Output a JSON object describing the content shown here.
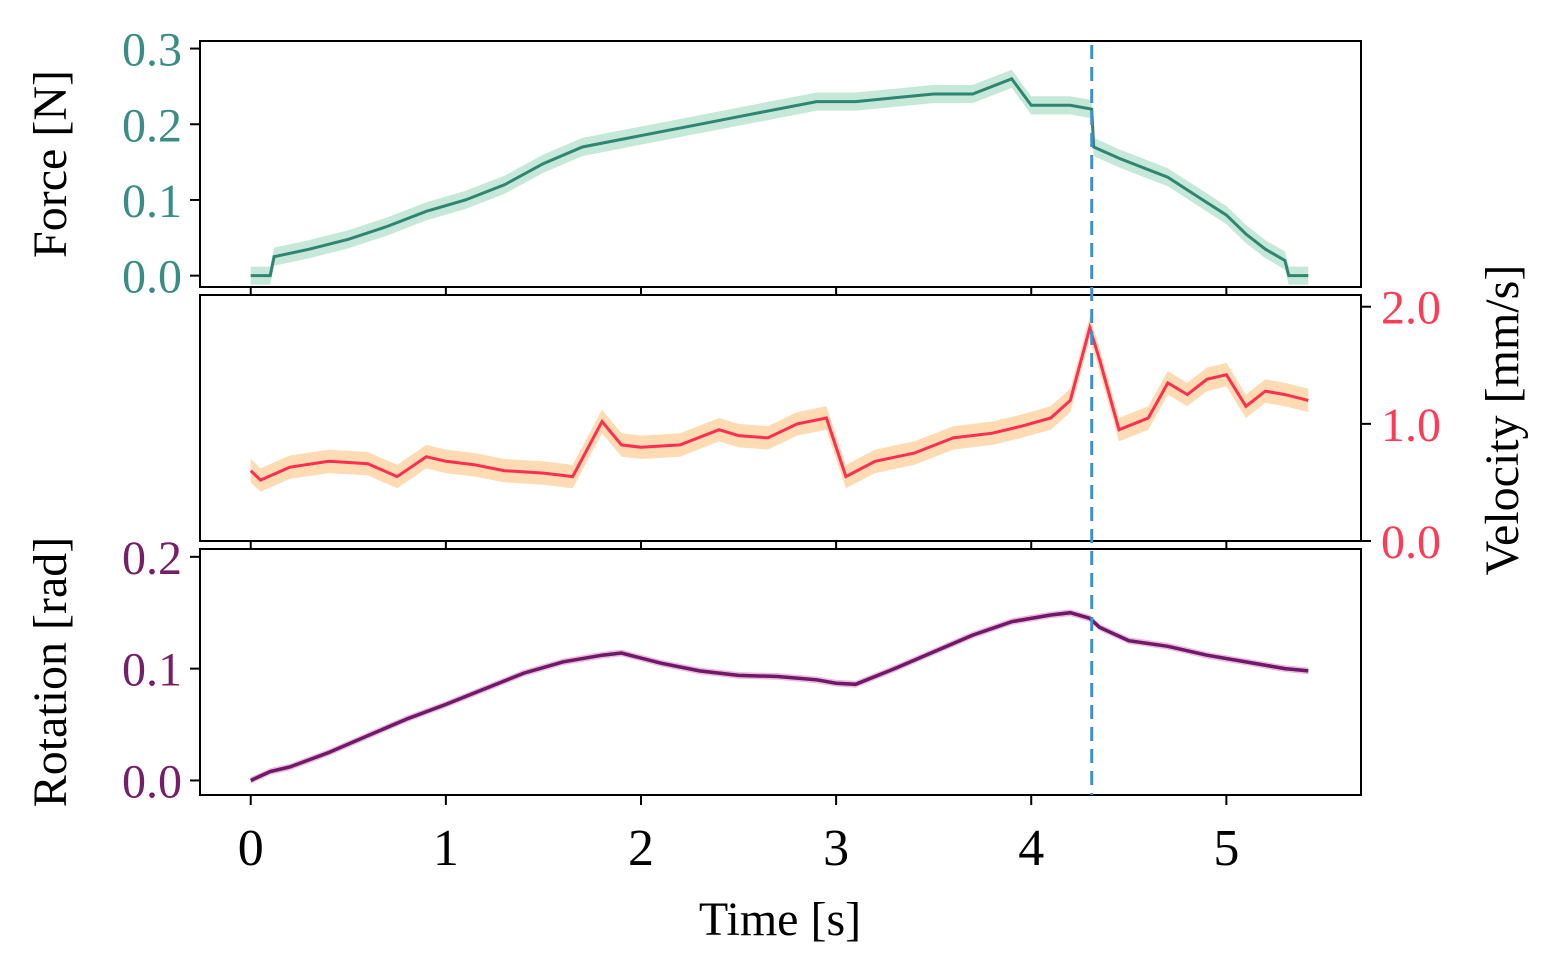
{
  "colors": {
    "force_line": "#2f8572",
    "force_band": "#9ed9bf",
    "force_tick": "#3a8d85",
    "velocity_line": "#ff2d4f",
    "velocity_band": "#fdc88a",
    "velocity_tick": "#ff3a55",
    "rotation_line": "#6e1a6a",
    "rotation_band": "#e58cc2",
    "rotation_tick": "#742068",
    "event_line": "#3f8fcf",
    "axis": "#000000"
  },
  "chart_data": [
    {
      "type": "line",
      "panel": "force",
      "ylabel": "Force [N]",
      "ylim": [
        -0.015,
        0.31
      ],
      "yticks": [
        "0.0",
        "0.1",
        "0.2",
        "0.3"
      ],
      "xlim": [
        -0.26,
        5.69
      ],
      "series": [
        {
          "values_description": "mean with shaded band",
          "x": [
            0.0,
            0.1,
            0.12,
            0.3,
            0.5,
            0.7,
            0.9,
            1.1,
            1.3,
            1.5,
            1.7,
            1.9,
            2.1,
            2.3,
            2.5,
            2.7,
            2.9,
            3.1,
            3.3,
            3.5,
            3.7,
            3.9,
            4.0,
            4.2,
            4.31,
            4.32,
            4.45,
            4.6,
            4.7,
            4.85,
            5.0,
            5.1,
            5.2,
            5.3,
            5.32,
            5.42
          ],
          "y": [
            0.0,
            0.0,
            0.025,
            0.035,
            0.048,
            0.065,
            0.085,
            0.1,
            0.12,
            0.148,
            0.17,
            0.18,
            0.19,
            0.2,
            0.21,
            0.22,
            0.23,
            0.23,
            0.235,
            0.24,
            0.24,
            0.26,
            0.225,
            0.225,
            0.22,
            0.17,
            0.155,
            0.14,
            0.13,
            0.105,
            0.08,
            0.055,
            0.035,
            0.02,
            0.0,
            0.0
          ],
          "band": 0.012
        }
      ]
    },
    {
      "type": "line",
      "panel": "velocity",
      "ylabel": "Velocity [mm/s]",
      "ylim": [
        0.0,
        2.1
      ],
      "yticks": [
        "0.0",
        "1.0",
        "2.0"
      ],
      "xlim": [
        -0.26,
        5.69
      ],
      "series": [
        {
          "values_description": "mean with shaded band",
          "x": [
            0.0,
            0.05,
            0.2,
            0.4,
            0.6,
            0.75,
            0.9,
            1.0,
            1.15,
            1.3,
            1.5,
            1.65,
            1.8,
            1.9,
            2.0,
            2.2,
            2.4,
            2.5,
            2.65,
            2.8,
            2.95,
            3.05,
            3.2,
            3.4,
            3.6,
            3.8,
            3.95,
            4.1,
            4.2,
            4.3,
            4.35,
            4.45,
            4.6,
            4.7,
            4.8,
            4.9,
            5.0,
            5.1,
            5.2,
            5.3,
            5.42
          ],
          "y": [
            0.6,
            0.52,
            0.63,
            0.68,
            0.66,
            0.55,
            0.72,
            0.68,
            0.65,
            0.6,
            0.58,
            0.55,
            1.02,
            0.82,
            0.8,
            0.82,
            0.95,
            0.9,
            0.88,
            1.0,
            1.05,
            0.55,
            0.68,
            0.75,
            0.88,
            0.92,
            0.98,
            1.05,
            1.2,
            1.82,
            1.55,
            0.95,
            1.05,
            1.35,
            1.25,
            1.38,
            1.42,
            1.15,
            1.28,
            1.25,
            1.2
          ],
          "band": 0.1
        }
      ]
    },
    {
      "type": "line",
      "panel": "rotation",
      "ylabel": "Rotation [rad]",
      "ylim": [
        -0.013,
        0.207
      ],
      "yticks": [
        "0.0",
        "0.1",
        "0.2"
      ],
      "xlim": [
        -0.26,
        5.69
      ],
      "xlabel": "Time [s]",
      "xticks": [
        "0",
        "1",
        "2",
        "3",
        "4",
        "5"
      ],
      "series": [
        {
          "values_description": "mean with shaded band",
          "x": [
            0.0,
            0.1,
            0.2,
            0.4,
            0.6,
            0.8,
            1.0,
            1.2,
            1.4,
            1.6,
            1.8,
            1.9,
            2.1,
            2.3,
            2.5,
            2.7,
            2.9,
            3.0,
            3.1,
            3.3,
            3.5,
            3.7,
            3.9,
            4.1,
            4.2,
            4.3,
            4.35,
            4.5,
            4.7,
            4.9,
            5.1,
            5.3,
            5.42
          ],
          "y": [
            0.0,
            0.008,
            0.012,
            0.025,
            0.04,
            0.055,
            0.068,
            0.082,
            0.096,
            0.106,
            0.112,
            0.114,
            0.105,
            0.098,
            0.094,
            0.093,
            0.09,
            0.087,
            0.086,
            0.1,
            0.115,
            0.13,
            0.142,
            0.148,
            0.15,
            0.145,
            0.137,
            0.125,
            0.12,
            0.112,
            0.106,
            0.1,
            0.098
          ],
          "band": 0.003
        }
      ]
    }
  ],
  "event_marker": {
    "x": 4.31,
    "style": "dashed"
  }
}
